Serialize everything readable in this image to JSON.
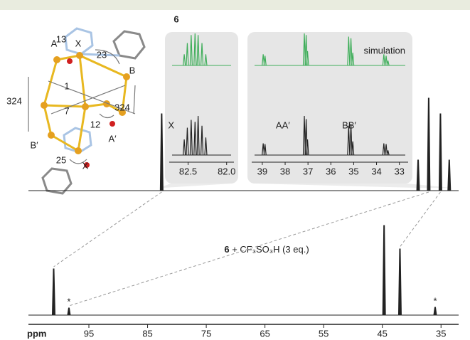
{
  "chart_data": {
    "type": "nmr",
    "x_label": "ppm",
    "xlim": [
      105.3,
      32
    ],
    "xticks": [
      95,
      85,
      75,
      65,
      55,
      45,
      35
    ],
    "color": "#222222",
    "spectra": [
      {
        "compound": "6",
        "ylim": [
          0,
          1.3
        ],
        "positions": [
          82.6,
          38.9,
          37.1,
          35.1,
          33.6
        ],
        "intensities": [
          1.08,
          0.43,
          1.3,
          1.08,
          0.43
        ]
      },
      {
        "compound": "6",
        "label": "+ CF₃SO₃H (3 eq.)",
        "ylim": [
          0,
          1.3
        ],
        "positions": [
          101.0,
          98.4,
          44.7,
          42.0,
          36.0
        ],
        "intensities": [
          0.65,
          0.1,
          1.26,
          0.93,
          0.11
        ],
        "annotations": [
          null,
          "*",
          null,
          null,
          "*"
        ]
      }
    ],
    "insets": [
      {
        "xlim": [
          82.8,
          81.85
        ],
        "xticks": [
          82.5,
          {
            "value": 82,
            "label": "82.0"
          }
        ],
        "labels": [
          {
            "text": "X",
            "position": 82.72
          }
        ],
        "simulation": {
          "color": "#3fae5a",
          "positions": [
            82.27,
            82.32,
            82.37,
            82.41,
            82.46,
            82.51,
            82.55
          ],
          "intensities": [
            0.35,
            0.7,
            0.95,
            1.0,
            0.95,
            0.7,
            0.35
          ]
        },
        "experimental": {
          "positions": [
            82.27,
            82.32,
            82.37,
            82.41,
            82.46,
            82.51,
            82.55
          ],
          "intensities": [
            0.45,
            0.75,
            1.0,
            0.85,
            0.9,
            0.7,
            0.4
          ]
        }
      },
      {
        "xlim": [
          39.65,
          32.43
        ],
        "xticks": [
          39,
          38,
          37,
          36,
          35,
          34,
          33
        ],
        "labels": [
          {
            "text": "AA′",
            "position": 38.1
          },
          {
            "text": "BB′",
            "position": 35.2
          }
        ],
        "simulation_label": "simulation",
        "simulation": {
          "color": "#3fae5a",
          "positions": [
            38.96,
            38.88,
            37.16,
            37.08,
            37.02,
            35.22,
            35.12,
            35.04,
            33.68,
            33.58,
            33.5
          ],
          "intensities": [
            0.35,
            0.3,
            1.0,
            0.95,
            0.45,
            0.9,
            0.85,
            0.4,
            0.35,
            0.3,
            0.15
          ]
        },
        "experimental": {
          "positions": [
            38.96,
            38.88,
            37.16,
            37.08,
            37.02,
            35.22,
            35.12,
            35.04,
            33.68,
            33.58,
            33.5
          ],
          "intensities": [
            0.3,
            0.28,
            1.0,
            0.92,
            0.4,
            0.75,
            0.8,
            0.35,
            0.3,
            0.28,
            0.12
          ]
        }
      }
    ]
  },
  "molecule": {
    "labels": [
      "A",
      "13",
      "X",
      "23",
      "B",
      "1",
      "324",
      "7",
      "324",
      "B′",
      "12",
      "A′",
      "25",
      "X"
    ]
  }
}
